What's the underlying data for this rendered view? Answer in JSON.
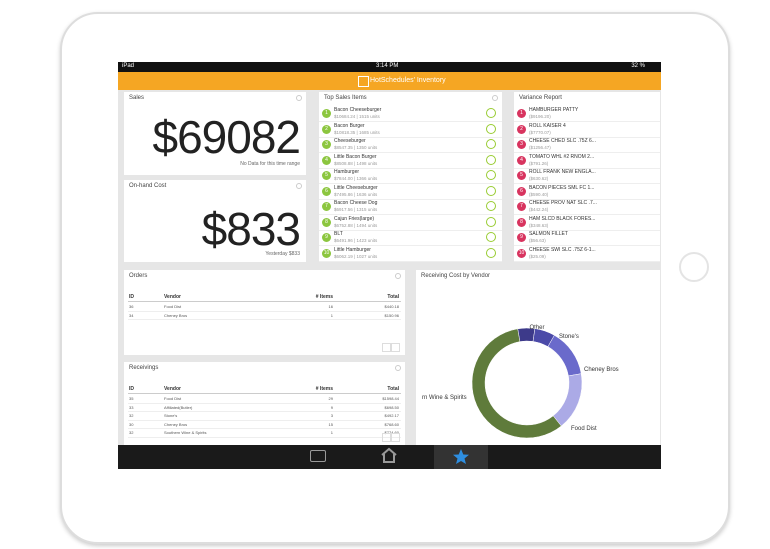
{
  "status_bar": {
    "device": "iPad",
    "time": "3:14 PM",
    "battery": "32 %"
  },
  "header": {
    "title": "HotSchedules' Inventory"
  },
  "sales": {
    "title": "Sales",
    "value": "$69082",
    "note": "No Data for this time range"
  },
  "on_hand_cost": {
    "title": "On-hand Cost",
    "value": "$833",
    "note": "Yesterday $833"
  },
  "top_sales_items": {
    "title": "Top Sales Items",
    "items": [
      {
        "rank": "1",
        "name": "Bacon Cheeseburger",
        "detail": "$10684.24 | 1515 units"
      },
      {
        "rank": "2",
        "name": "Bacon Burger",
        "detail": "$10818.35 | 1685 units"
      },
      {
        "rank": "3",
        "name": "Cheeseburger",
        "detail": "$8547.35 | 1350 units"
      },
      {
        "rank": "4",
        "name": "Little Bacon Burger",
        "detail": "$8508.88 | 1498 units"
      },
      {
        "rank": "5",
        "name": "Hamburger",
        "detail": "$7844.00 | 1366 units"
      },
      {
        "rank": "6",
        "name": "Little Cheeseburger",
        "detail": "$7495.86 | 1636 units"
      },
      {
        "rank": "7",
        "name": "Bacon Cheese Dog",
        "detail": "$6917.56 | 1315 units"
      },
      {
        "rank": "8",
        "name": "Cajun Fries(large)",
        "detail": "$6752.88 | 1494 units"
      },
      {
        "rank": "9",
        "name": "BLT",
        "detail": "$6491.96 | 1423 units"
      },
      {
        "rank": "10",
        "name": "Little Hamburger",
        "detail": "$6062.19 | 1027 units"
      }
    ]
  },
  "variance_report": {
    "title": "Variance Report",
    "items": [
      {
        "rank": "1",
        "name": "HAMBURGER PATTY",
        "detail": "($9196.20)"
      },
      {
        "rank": "2",
        "name": "ROLL KAISER 4",
        "detail": "($7770.07)"
      },
      {
        "rank": "3",
        "name": "CHEESE CHED SLC .75Z 6...",
        "detail": "($1256.47)"
      },
      {
        "rank": "4",
        "name": "TOMATO WHL #2 RNOM 2...",
        "detail": "($791.26)"
      },
      {
        "rank": "5",
        "name": "ROLL FRANK NEW ENGLA...",
        "detail": "($630.62)"
      },
      {
        "rank": "6",
        "name": "BACON PIECES SML FC 1...",
        "detail": "($590.40)"
      },
      {
        "rank": "7",
        "name": "CHEESE PROV NAT SLC .7...",
        "detail": "($442.24)"
      },
      {
        "rank": "8",
        "name": "HAM SLCD BLACK FORES...",
        "detail": "($348.63)"
      },
      {
        "rank": "9",
        "name": "SALMON FILLET",
        "detail": "($56.63)"
      },
      {
        "rank": "10",
        "name": "CHEESE SWI SLC .75Z 6-1...",
        "detail": "($25.09)"
      }
    ]
  },
  "orders": {
    "title": "Orders",
    "columns": [
      "ID",
      "Vendor",
      "# Items",
      "Total"
    ],
    "rows": [
      [
        "36",
        "Food Dist",
        "16",
        "$440.18"
      ],
      [
        "34",
        "Cheney Bros",
        "1",
        "$150.96"
      ]
    ]
  },
  "receivings": {
    "title": "Receivings",
    "columns": [
      "ID",
      "Vendor",
      "# Items",
      "Total"
    ],
    "rows": [
      [
        "35",
        "Food Dist",
        "29",
        "$1598.44"
      ],
      [
        "33",
        "Affiliated(Butler)",
        "9",
        "$698.50"
      ],
      [
        "32",
        "Stone's",
        "3",
        "$492.17"
      ],
      [
        "30",
        "Cheney Bros",
        "15",
        "$768.60"
      ],
      [
        "32",
        "Southern Wine & Spirits",
        "1",
        "$774.60"
      ]
    ]
  },
  "receiving_cost_by_vendor": {
    "title": "Receiving Cost by Vendor",
    "slices": [
      {
        "name": "Other",
        "value": 5,
        "color": "#3d3a8a"
      },
      {
        "name": "Stone's",
        "value": 6,
        "color": "#4b4aa8"
      },
      {
        "name": "Cheney Bros",
        "value": 14,
        "color": "#6a6acb"
      },
      {
        "name": "Food Dist",
        "value": 17,
        "color": "#abaae6"
      },
      {
        "name": "rn Wine & Spirits",
        "value": 58,
        "color": "#5f7b3b"
      }
    ]
  }
}
